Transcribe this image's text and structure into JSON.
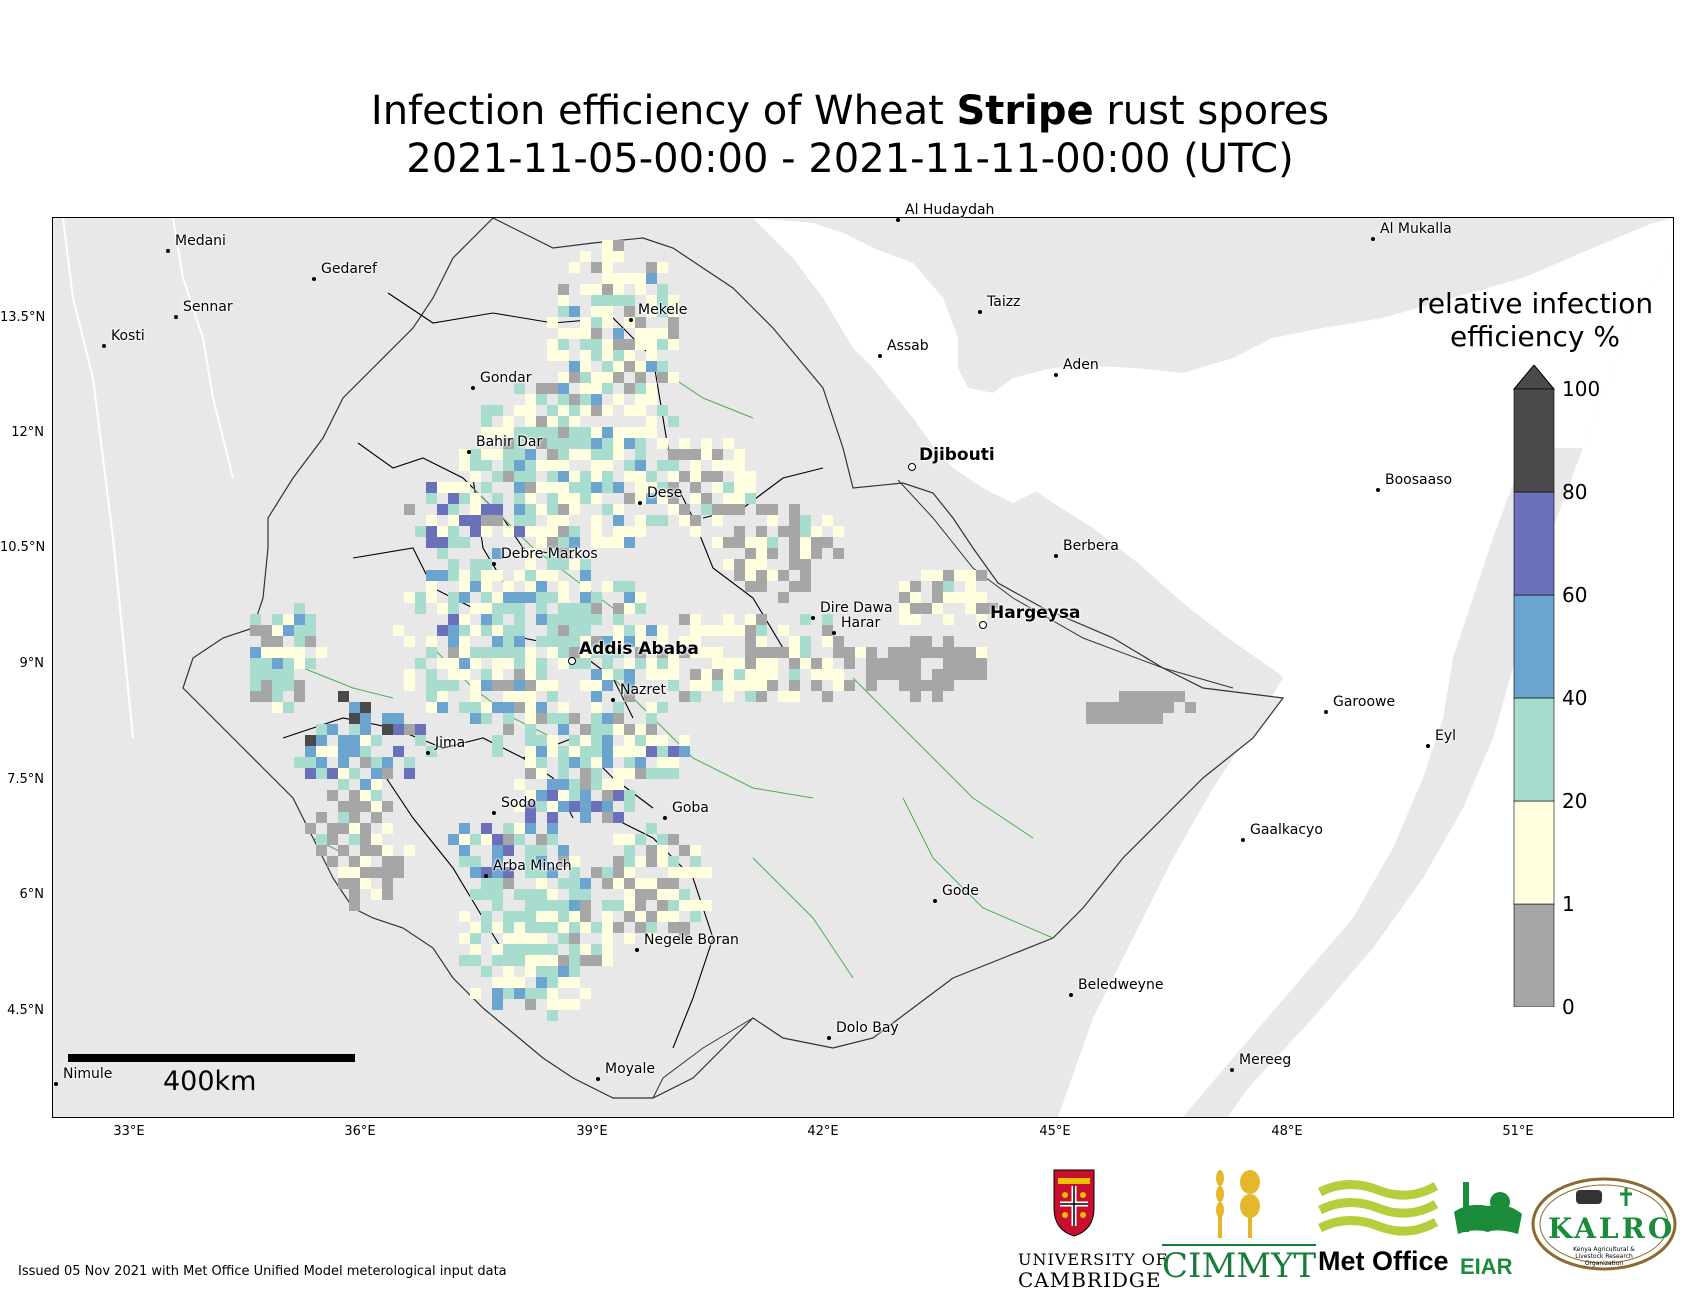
{
  "title": {
    "line1_prefix": "Infection efficiency of Wheat ",
    "line1_bold": "Stripe",
    "line1_suffix": " rust spores",
    "line2": "2021-11-05-00:00 - 2021-11-11-00:00 (UTC)"
  },
  "axes": {
    "lat_ticks": [
      "13.5°N",
      "12°N",
      "10.5°N",
      "9°N",
      "7.5°N",
      "6°N",
      "4.5°N"
    ],
    "lon_ticks": [
      "33°E",
      "36°E",
      "39°E",
      "42°E",
      "45°E",
      "48°E",
      "51°E"
    ]
  },
  "cities": [
    {
      "name": "Medani",
      "bold": false
    },
    {
      "name": "Gedaref",
      "bold": false
    },
    {
      "name": "Sennar",
      "bold": false
    },
    {
      "name": "Kosti",
      "bold": false
    },
    {
      "name": "Mekele",
      "bold": false
    },
    {
      "name": "Gondar",
      "bold": false
    },
    {
      "name": "Bahir Dar",
      "bold": false
    },
    {
      "name": "Dese",
      "bold": false
    },
    {
      "name": "Debre Markos",
      "bold": false
    },
    {
      "name": "Addis Ababa",
      "bold": true
    },
    {
      "name": "Nazret",
      "bold": false
    },
    {
      "name": "Jima",
      "bold": false
    },
    {
      "name": "Sodo",
      "bold": false
    },
    {
      "name": "Goba",
      "bold": false
    },
    {
      "name": "Arba Minch",
      "bold": false
    },
    {
      "name": "Negele Boran",
      "bold": false
    },
    {
      "name": "Moyale",
      "bold": false
    },
    {
      "name": "Nimule",
      "bold": false
    },
    {
      "name": "Dire Dawa",
      "bold": false
    },
    {
      "name": "Harar",
      "bold": false
    },
    {
      "name": "Al Hudaydah",
      "bold": false
    },
    {
      "name": "Taizz",
      "bold": false
    },
    {
      "name": "Assab",
      "bold": false
    },
    {
      "name": "Aden",
      "bold": false
    },
    {
      "name": "Djibouti",
      "bold": true
    },
    {
      "name": "Al Mukalla",
      "bold": false
    },
    {
      "name": "Boosaaso",
      "bold": false
    },
    {
      "name": "Berbera",
      "bold": false
    },
    {
      "name": "Hargeysa",
      "bold": true
    },
    {
      "name": "Garoowe",
      "bold": false
    },
    {
      "name": "Eyl",
      "bold": false
    },
    {
      "name": "Gaalkacyo",
      "bold": false
    },
    {
      "name": "Gode",
      "bold": false
    },
    {
      "name": "Beledweyne",
      "bold": false
    },
    {
      "name": "Dolo Bay",
      "bold": false
    },
    {
      "name": "Mereeg",
      "bold": false
    }
  ],
  "scalebar": {
    "label": "400km"
  },
  "colorbar": {
    "title_line1": "relative infection",
    "title_line2": "efficiency %",
    "ticks": [
      "0",
      "1",
      "20",
      "40",
      "60",
      "80",
      "100"
    ],
    "bins": [
      {
        "range": [
          0,
          1
        ],
        "color": "#a6a6a6"
      },
      {
        "range": [
          1,
          20
        ],
        "color": "#ffffe0"
      },
      {
        "range": [
          20,
          40
        ],
        "color": "#a8dccf"
      },
      {
        "range": [
          40,
          60
        ],
        "color": "#6ba5cf"
      },
      {
        "range": [
          60,
          80
        ],
        "color": "#6a70b9"
      },
      {
        "range": [
          80,
          100
        ],
        "color": "#4a4a4a"
      }
    ],
    "extend": "max"
  },
  "map_colors": {
    "ocean": "#ffffff",
    "land_other": "#e8e8e8",
    "border": "#333333",
    "region_border": "#000000",
    "river": "#4caf50",
    "coast": "#9e9e9e"
  },
  "footer": {
    "issued": "Issued 05 Nov 2021 with Met Office Unified Model meterological input data"
  },
  "logos": {
    "cambridge_line1": "UNIVERSITY OF",
    "cambridge_line2": "CAMBRIDGE",
    "cimmyt": "CIMMYT",
    "metoffice": "Met Office",
    "eiar": "EIAR",
    "kalro": "KALRO",
    "kalro_sub": "Kenya Agricultural & Livestock Research Organization"
  }
}
